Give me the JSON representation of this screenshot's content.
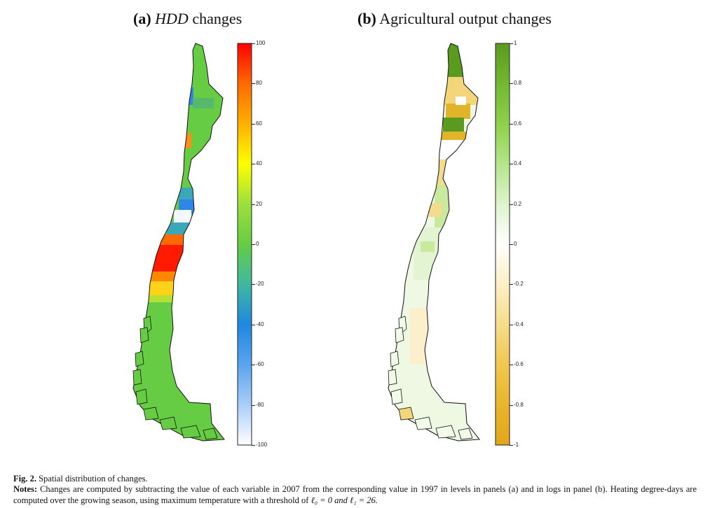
{
  "figure": {
    "panel_a_label": "(a)",
    "panel_a_var": "HDD",
    "panel_a_rest": "changes",
    "panel_b_label": "(b)",
    "panel_b_title": "Agricultural output changes",
    "caption_label": "Fig. 2.",
    "caption_text": "Spatial distribution of changes.",
    "notes_label": "Notes:",
    "notes_text_1": "Changes are computed by subtracting the value of each variable in 2007 from the corresponding value in 1997 in levels in panels (a) and in logs in panel (b). Heating degree-days are computed over the growing season, using maximum temperature with a threshold of",
    "notes_math": "ℓ₀ = 0 and ℓ₁ = 26."
  },
  "colorbar_a": {
    "ticks": [
      "100",
      "80",
      "60",
      "40",
      "20",
      "0",
      "-20",
      "-40",
      "-60",
      "-80",
      "-100"
    ],
    "colors": [
      "#ff0000",
      "#ff6a00",
      "#ffb000",
      "#ffff00",
      "#9ce03c",
      "#66cc44",
      "#3fb8a0",
      "#1e88e0",
      "#5aa4ee",
      "#aacdf8",
      "#ffffff"
    ]
  },
  "colorbar_b": {
    "ticks": [
      "1",
      "0.8",
      "0.6",
      "0.4",
      "0.2",
      "0",
      "-0.2",
      "-0.4",
      "-0.6",
      "-0.8",
      "-1"
    ],
    "colors": [
      "#5a9a1e",
      "#72b830",
      "#8ed04a",
      "#b4e68a",
      "#ddf4cc",
      "#ffffff",
      "#fbefc4",
      "#f6dd8a",
      "#f0c850",
      "#e9b52c",
      "#e2a71a"
    ]
  },
  "map_a": {
    "regions": [
      {
        "name": "far-north",
        "color": "#66cc44"
      },
      {
        "name": "north-blue-spot",
        "color": "#2f86e6"
      },
      {
        "name": "north-orange-spot",
        "color": "#ff8c1a"
      },
      {
        "name": "central-north",
        "color": "#66cc44"
      },
      {
        "name": "central-blue",
        "color": "#4a98ea"
      },
      {
        "name": "central-white",
        "color": "#f2f8ff"
      },
      {
        "name": "central-teal",
        "color": "#3aa8b8"
      },
      {
        "name": "south-central-red",
        "color": "#ff1a00"
      },
      {
        "name": "south-central-orange",
        "color": "#ff8800"
      },
      {
        "name": "south-central-yellow",
        "color": "#ffd21a"
      },
      {
        "name": "south",
        "color": "#66cc44"
      },
      {
        "name": "far-south",
        "color": "#66cc44"
      }
    ]
  },
  "map_b": {
    "regions": [
      {
        "name": "far-north",
        "color": "#5a9a1e"
      },
      {
        "name": "north-light",
        "color": "#f3d57a"
      },
      {
        "name": "north-dark-gold",
        "color": "#e2b42a"
      },
      {
        "name": "north-white",
        "color": "#ffffff"
      },
      {
        "name": "north-green",
        "color": "#5a9a1e"
      },
      {
        "name": "north-central",
        "color": "#f4dc8e"
      },
      {
        "name": "central-mixed",
        "color": "#c9ea9c"
      },
      {
        "name": "central-pale",
        "color": "#e3f4d2"
      },
      {
        "name": "south-central",
        "color": "#eef8e2"
      },
      {
        "name": "south-cream",
        "color": "#fcf0cc"
      },
      {
        "name": "south",
        "color": "#f2fae8"
      },
      {
        "name": "far-south",
        "color": "#f2fae8"
      }
    ]
  }
}
